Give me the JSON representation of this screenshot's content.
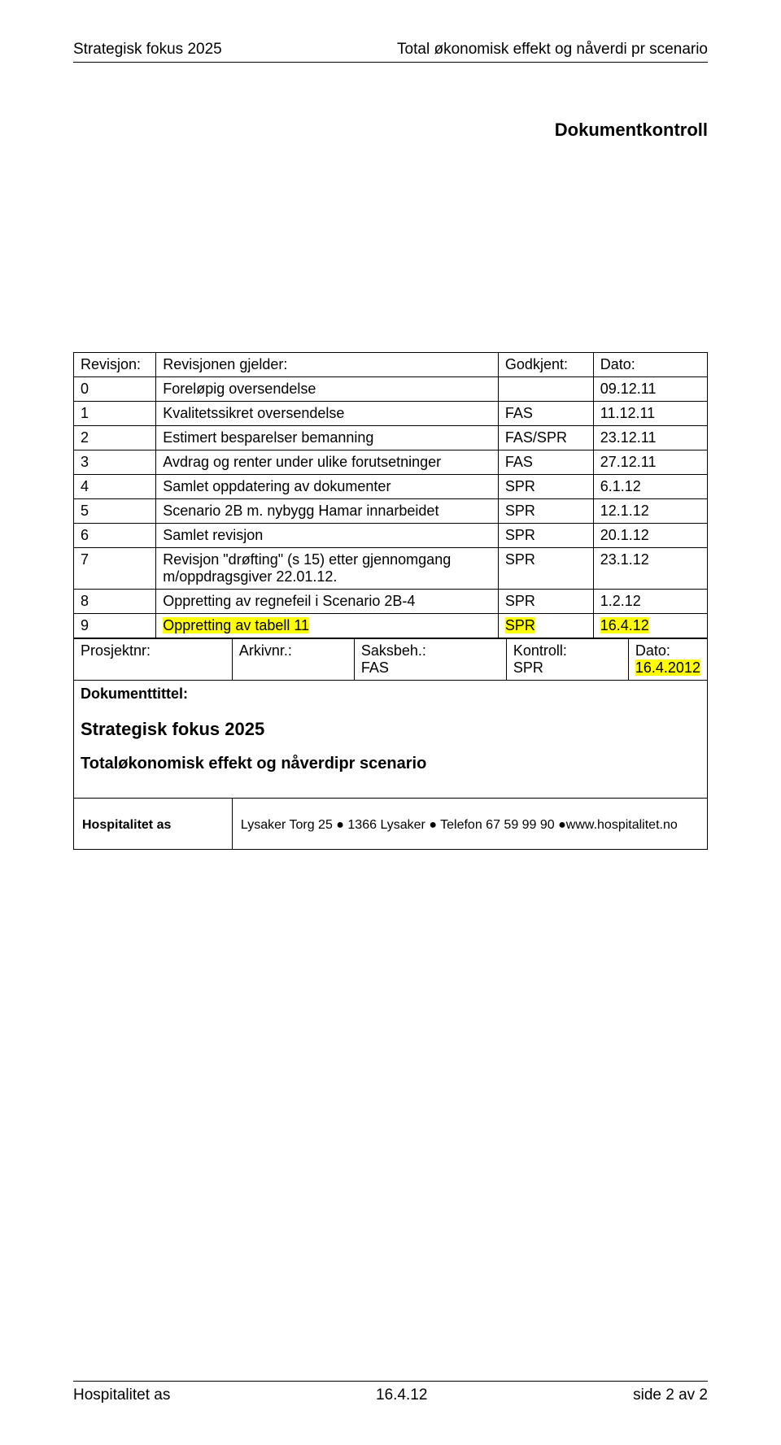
{
  "header": {
    "left": "Strategisk fokus 2025",
    "right": "Total økonomisk effekt og nåverdi pr scenario"
  },
  "section_title": "Dokumentkontroll",
  "rev_table": {
    "headers": [
      "Revisjon:",
      "Revisjonen gjelder:",
      "Godkjent:",
      "Dato:"
    ],
    "rows": [
      {
        "n": "0",
        "desc": "Foreløpig oversendelse",
        "by": "",
        "date": "09.12.11",
        "hl": false
      },
      {
        "n": "1",
        "desc": "Kvalitetssikret oversendelse",
        "by": "FAS",
        "date": "11.12.11",
        "hl": false
      },
      {
        "n": "2",
        "desc": "Estimert besparelser bemanning",
        "by": "FAS/SPR",
        "date": "23.12.11",
        "hl": false
      },
      {
        "n": "3",
        "desc": "Avdrag og renter under ulike forutsetninger",
        "by": "FAS",
        "date": "27.12.11",
        "hl": false
      },
      {
        "n": "4",
        "desc": "Samlet oppdatering av dokumenter",
        "by": "SPR",
        "date": "6.1.12",
        "hl": false
      },
      {
        "n": "5",
        "desc": "Scenario 2B m. nybygg Hamar innarbeidet",
        "by": "SPR",
        "date": "12.1.12",
        "hl": false
      },
      {
        "n": "6",
        "desc": "Samlet revisjon",
        "by": "SPR",
        "date": "20.1.12",
        "hl": false
      },
      {
        "n": "7",
        "desc": "Revisjon \"drøfting\" (s 15) etter gjennomgang m/oppdragsgiver 22.01.12.",
        "by": "SPR",
        "date": "23.1.12",
        "hl": false
      },
      {
        "n": "8",
        "desc": "Oppretting av regnefeil i Scenario 2B-4",
        "by": "SPR",
        "date": "1.2.12",
        "hl": false
      },
      {
        "n": "9",
        "desc": "Oppretting av tabell 11",
        "by": "SPR",
        "date": "16.4.12",
        "hl": true
      }
    ]
  },
  "meta_row": {
    "labels": [
      "Prosjektnr:",
      "Arkivnr.:",
      "Saksbeh.:",
      "Kontroll:",
      "Dato:"
    ],
    "values": [
      "",
      "",
      "FAS",
      "SPR",
      "16.4.2012"
    ],
    "hl_date": true
  },
  "doc_title_label": "Dokumenttittel:",
  "doc_title_1": "Strategisk fokus 2025",
  "doc_title_2": "Totaløkonomisk effekt og nåverdipr scenario",
  "hosp": {
    "name": "Hospitalitet as",
    "addr": "Lysaker Torg 25 ● 1366 Lysaker ● Telefon 67 59 99 90 ●www.hospitalitet.no"
  },
  "footer": {
    "left": "Hospitalitet as",
    "center": "16.4.12",
    "right": "side 2 av 2"
  }
}
